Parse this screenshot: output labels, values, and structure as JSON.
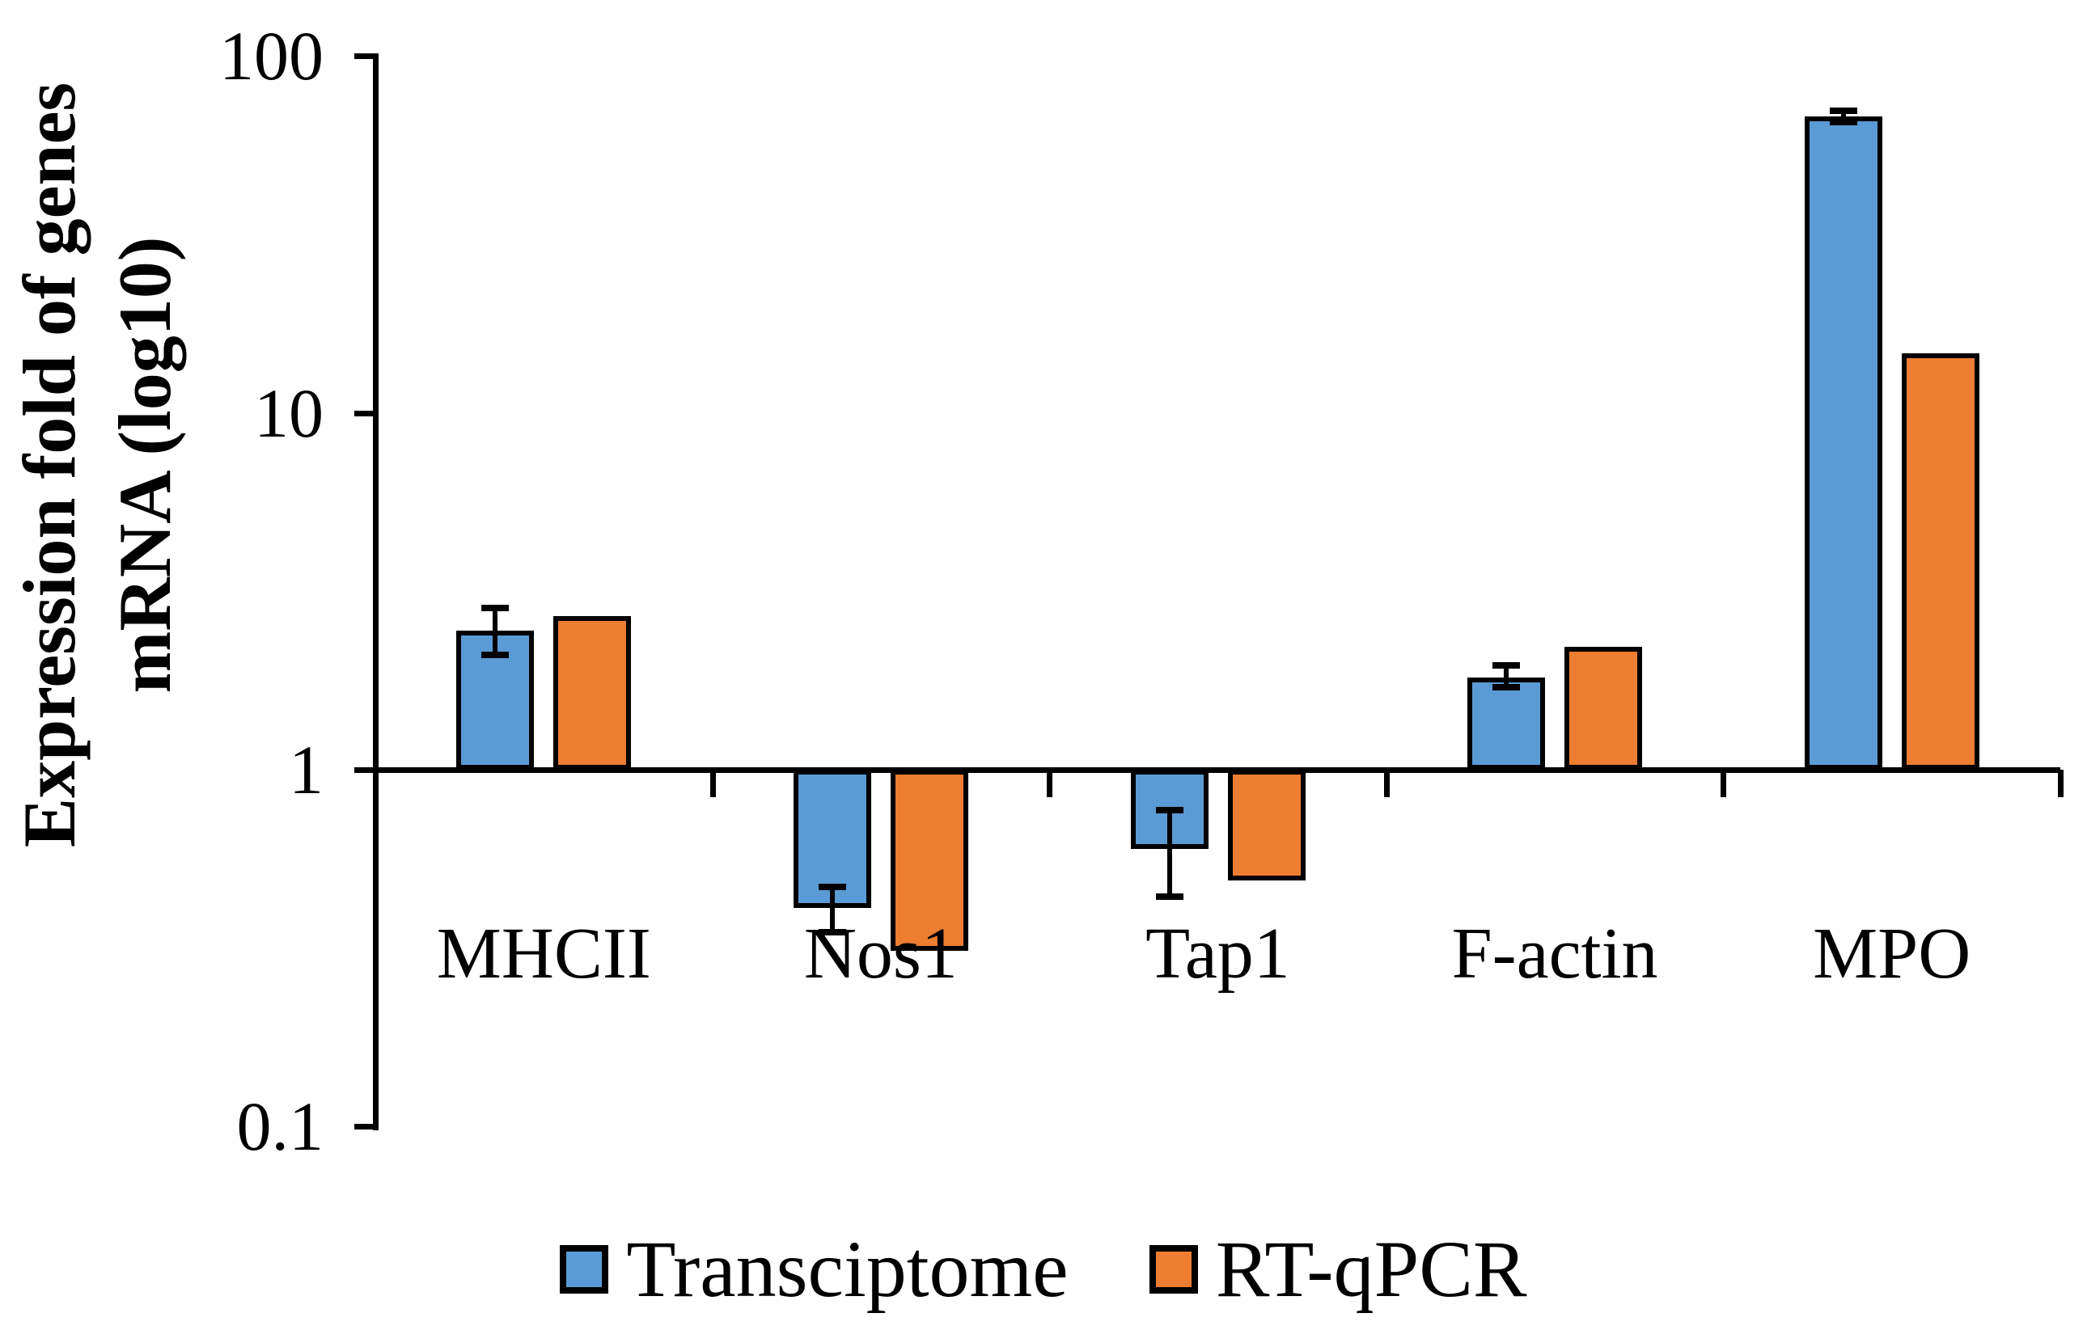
{
  "chart_data": {
    "type": "bar",
    "title": "",
    "ylabel_line1": "Expression fold of genes",
    "ylabel_line2": "mRNA (log10)",
    "yscale": "log10",
    "ylim": [
      0.1,
      100
    ],
    "baseline_value": 1,
    "ytick_labels": [
      "100",
      "10",
      "1",
      "0.1"
    ],
    "ytick_values": [
      100,
      10,
      1,
      0.1
    ],
    "grid": false,
    "legend_position": "bottom",
    "categories": [
      "MHCII",
      "Nos1",
      "Tap1",
      "F-actin",
      "MPO"
    ],
    "series": [
      {
        "name": "Transciptome",
        "color": "#5B9BD5",
        "values": [
          2.45,
          0.41,
          0.6,
          1.81,
          67.6
        ],
        "error_hi": [
          2.84,
          0.47,
          0.77,
          1.96,
          70.2
        ],
        "error_lo": [
          2.1,
          0.35,
          0.44,
          1.7,
          65.2
        ]
      },
      {
        "name": "RT-qPCR",
        "color": "#ED7D31",
        "values": [
          2.7,
          0.31,
          0.49,
          2.21,
          14.7
        ]
      }
    ]
  }
}
